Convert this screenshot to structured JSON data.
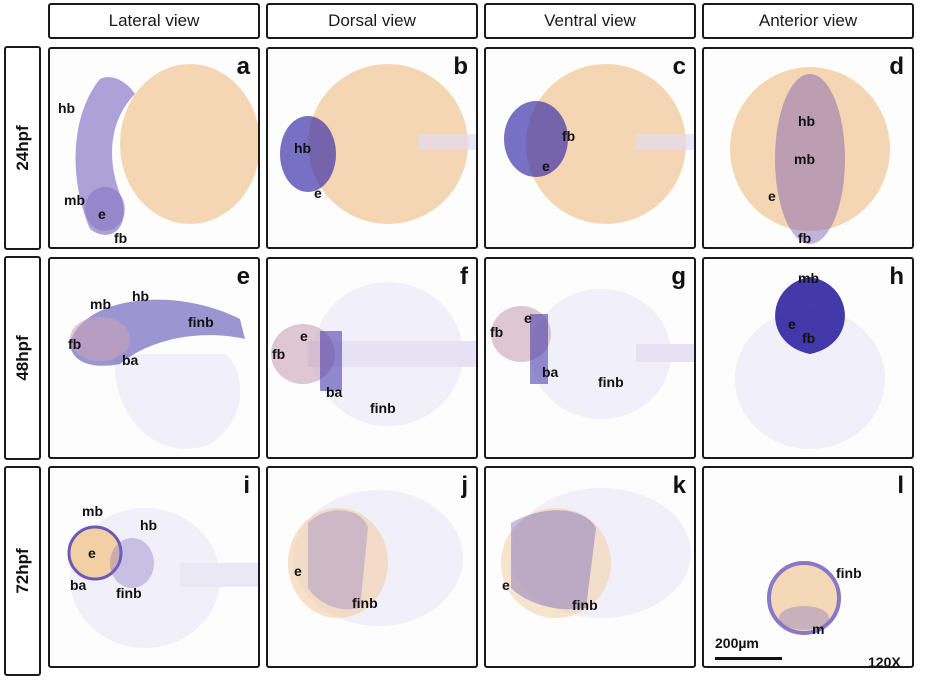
{
  "columns": [
    "Lateral view",
    "Dorsal view",
    "Ventral view",
    "Anterior view"
  ],
  "rows": [
    "24hpf",
    "48hpf",
    "72hpf"
  ],
  "panels": [
    {
      "letter": "a",
      "labels": [
        "hb",
        "mb",
        "e",
        "fb"
      ]
    },
    {
      "letter": "b",
      "labels": [
        "hb",
        "e"
      ]
    },
    {
      "letter": "c",
      "labels": [
        "fb",
        "e"
      ]
    },
    {
      "letter": "d",
      "labels": [
        "hb",
        "mb",
        "e",
        "fb"
      ]
    },
    {
      "letter": "e",
      "labels": [
        "mb",
        "hb",
        "fb",
        "ba",
        "finb"
      ]
    },
    {
      "letter": "f",
      "labels": [
        "e",
        "fb",
        "ba",
        "finb"
      ]
    },
    {
      "letter": "g",
      "labels": [
        "e",
        "fb",
        "ba",
        "finb"
      ]
    },
    {
      "letter": "h",
      "labels": [
        "mb",
        "e",
        "fb"
      ]
    },
    {
      "letter": "i",
      "labels": [
        "mb",
        "hb",
        "e",
        "ba",
        "finb"
      ]
    },
    {
      "letter": "j",
      "labels": [
        "e",
        "finb"
      ]
    },
    {
      "letter": "k",
      "labels": [
        "e",
        "finb"
      ]
    },
    {
      "letter": "l",
      "labels": [
        "finb",
        "m"
      ]
    }
  ],
  "scale_bar": "200µm",
  "magnification": "120X",
  "colors": {
    "stain": "#3a2fa0",
    "yolk": "#f2c79a",
    "border": "#1a1a1a"
  }
}
